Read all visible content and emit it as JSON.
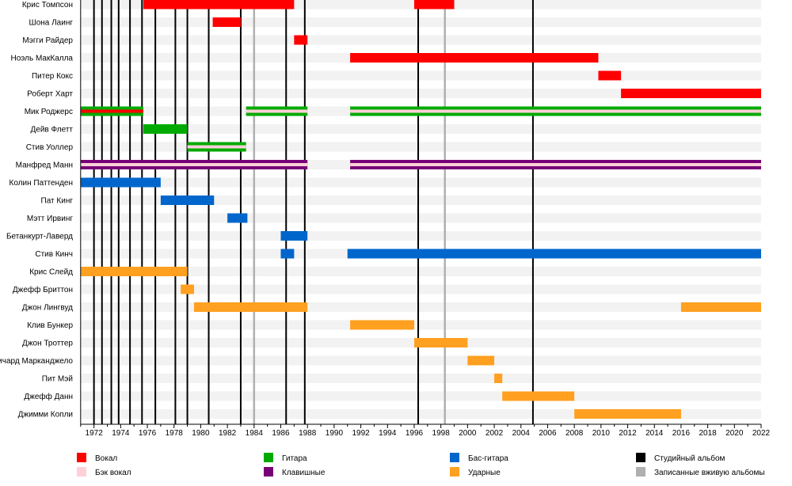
{
  "chart_data": {
    "type": "timeline",
    "xlim": [
      1971,
      2022
    ],
    "x_ticks": [
      1972,
      1974,
      1976,
      1978,
      1980,
      1982,
      1984,
      1986,
      1988,
      1990,
      1992,
      1994,
      1996,
      1998,
      2000,
      2002,
      2004,
      2006,
      2008,
      2010,
      2012,
      2014,
      2016,
      2018,
      2020,
      2022
    ],
    "colors": {
      "vocals": "#ff0000",
      "backing_vocals": "#ffd0d8",
      "guitar": "#00aa00",
      "keyboards": "#770077",
      "bass": "#0066cc",
      "drums": "#ffa020",
      "studio_album": "#000000",
      "live_album": "#b0b0b0"
    },
    "members": [
      {
        "name": "Крис Томпсон",
        "periods": [
          {
            "role": "vocals",
            "start": 1975.7,
            "end": 1987.0
          },
          {
            "role": "vocals",
            "start": 1996.0,
            "end": 1999.0
          }
        ]
      },
      {
        "name": "Шона Лаинг",
        "periods": [
          {
            "role": "vocals",
            "start": 1980.9,
            "end": 1983.0
          }
        ]
      },
      {
        "name": "Мэгги Райдер",
        "periods": [
          {
            "role": "vocals",
            "start": 1987.0,
            "end": 1988.0
          }
        ]
      },
      {
        "name": "Ноэль МакКалла",
        "periods": [
          {
            "role": "vocals",
            "start": 1991.2,
            "end": 2009.8
          }
        ]
      },
      {
        "name": "Питер Кокс",
        "periods": [
          {
            "role": "vocals",
            "start": 2009.8,
            "end": 2011.5
          }
        ]
      },
      {
        "name": "Роберт Харт",
        "periods": [
          {
            "role": "vocals",
            "start": 2011.5,
            "end": 2022.0
          }
        ]
      },
      {
        "name": "Мик Роджерс",
        "periods": [
          {
            "role": "guitar",
            "start": 1971.0,
            "end": 1975.7,
            "inner": "vocals"
          },
          {
            "role": "guitar",
            "start": 1983.4,
            "end": 1988.0,
            "inner": "backing_vocals"
          },
          {
            "role": "guitar",
            "start": 1991.2,
            "end": 2022.0,
            "inner": "backing_vocals"
          }
        ]
      },
      {
        "name": "Дейв Флетт",
        "periods": [
          {
            "role": "guitar",
            "start": 1975.7,
            "end": 1979.0
          }
        ]
      },
      {
        "name": "Стив Уоллер",
        "periods": [
          {
            "role": "guitar",
            "start": 1979.0,
            "end": 1983.4,
            "inner": "backing_vocals"
          }
        ]
      },
      {
        "name": "Манфред Манн",
        "periods": [
          {
            "role": "keyboards",
            "start": 1971.0,
            "end": 1988.0,
            "inner": "backing_vocals"
          },
          {
            "role": "keyboards",
            "start": 1991.2,
            "end": 2022.0,
            "inner": "backing_vocals"
          }
        ]
      },
      {
        "name": "Колин Паттенден",
        "periods": [
          {
            "role": "bass",
            "start": 1971.0,
            "end": 1977.0
          }
        ]
      },
      {
        "name": "Пат Кинг",
        "periods": [
          {
            "role": "bass",
            "start": 1977.0,
            "end": 1981.0
          }
        ]
      },
      {
        "name": "Мэтт Ирвинг",
        "periods": [
          {
            "role": "bass",
            "start": 1982.0,
            "end": 1983.5
          }
        ]
      },
      {
        "name": "Бетанкурт-Лаверд",
        "periods": [
          {
            "role": "bass",
            "start": 1986.0,
            "end": 1988.0
          }
        ]
      },
      {
        "name": "Стив Кинч",
        "periods": [
          {
            "role": "bass",
            "start": 1986.0,
            "end": 1987.0
          },
          {
            "role": "bass",
            "start": 1991.0,
            "end": 2022.0
          }
        ]
      },
      {
        "name": "Крис Слейд",
        "periods": [
          {
            "role": "drums",
            "start": 1971.0,
            "end": 1979.0
          }
        ]
      },
      {
        "name": "Джефф Бриттон",
        "periods": [
          {
            "role": "drums",
            "start": 1978.5,
            "end": 1979.5
          }
        ]
      },
      {
        "name": "Джон Лингвуд",
        "periods": [
          {
            "role": "drums",
            "start": 1979.5,
            "end": 1988.0
          },
          {
            "role": "drums",
            "start": 2016.0,
            "end": 2022.0
          }
        ]
      },
      {
        "name": "Клив Бункер",
        "periods": [
          {
            "role": "drums",
            "start": 1991.2,
            "end": 1996.0
          }
        ]
      },
      {
        "name": "Джон Троттер",
        "periods": [
          {
            "role": "drums",
            "start": 1996.0,
            "end": 2000.0
          }
        ]
      },
      {
        "name": "Ричард Марканджело",
        "periods": [
          {
            "role": "drums",
            "start": 2000.0,
            "end": 2002.0
          }
        ]
      },
      {
        "name": "Пит Мэй",
        "periods": [
          {
            "role": "drums",
            "start": 2002.0,
            "end": 2002.6
          }
        ]
      },
      {
        "name": "Джефф Данн",
        "periods": [
          {
            "role": "drums",
            "start": 2002.6,
            "end": 2008.0
          }
        ]
      },
      {
        "name": "Джимми Копли",
        "periods": [
          {
            "role": "drums",
            "start": 2008.0,
            "end": 2016.0
          }
        ]
      }
    ],
    "studio_albums": [
      1972.0,
      1972.6,
      1973.3,
      1973.85,
      1974.7,
      1975.6,
      1976.6,
      1978.1,
      1979.0,
      1980.6,
      1983.0,
      1986.4,
      1987.8,
      1996.3,
      2004.9
    ],
    "live_albums": [
      1984.0,
      1998.3
    ],
    "legend": [
      {
        "key": "vocals",
        "label": "Вокал"
      },
      {
        "key": "backing_vocals",
        "label": "Бэк вокал"
      },
      {
        "key": "guitar",
        "label": "Гитара"
      },
      {
        "key": "keyboards",
        "label": "Клавишные"
      },
      {
        "key": "bass",
        "label": "Бас-гитара"
      },
      {
        "key": "drums",
        "label": "Ударные"
      },
      {
        "key": "studio_album",
        "label": "Студийный альбом"
      },
      {
        "key": "live_album",
        "label": "Записанные вживую альбомы"
      }
    ],
    "legend_position": "bottom"
  }
}
